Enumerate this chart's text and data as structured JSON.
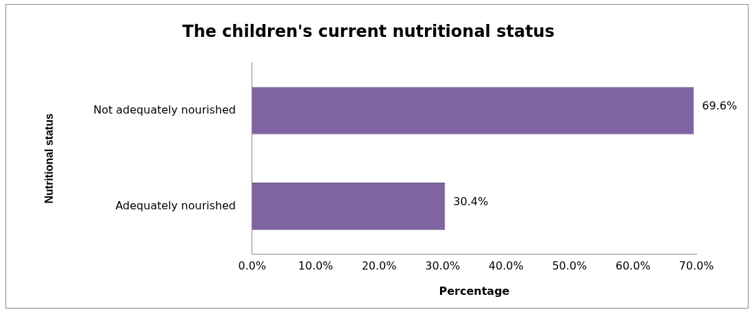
{
  "chart_data": {
    "type": "bar",
    "orientation": "horizontal",
    "title": "The children's current nutritional status",
    "xlabel": "Percentage",
    "ylabel": "Nutritional status",
    "categories": [
      "Not adequately nourished",
      "Adequately nourished"
    ],
    "values": [
      69.6,
      30.4
    ],
    "color": "#8064a2",
    "value_labels": [
      "69.6%",
      "30.4%"
    ],
    "xlim": [
      0,
      70
    ],
    "xticks": [
      {
        "value": 0,
        "label": "0.0%"
      },
      {
        "value": 10,
        "label": "10.0%"
      },
      {
        "value": 20,
        "label": "20.0%"
      },
      {
        "value": 30,
        "label": "30.0%"
      },
      {
        "value": 40,
        "label": "40.0%"
      },
      {
        "value": 50,
        "label": "50.0%"
      },
      {
        "value": 60,
        "label": "60.0%"
      },
      {
        "value": 70,
        "label": "70.0%"
      }
    ],
    "grid": false,
    "legend": false
  }
}
